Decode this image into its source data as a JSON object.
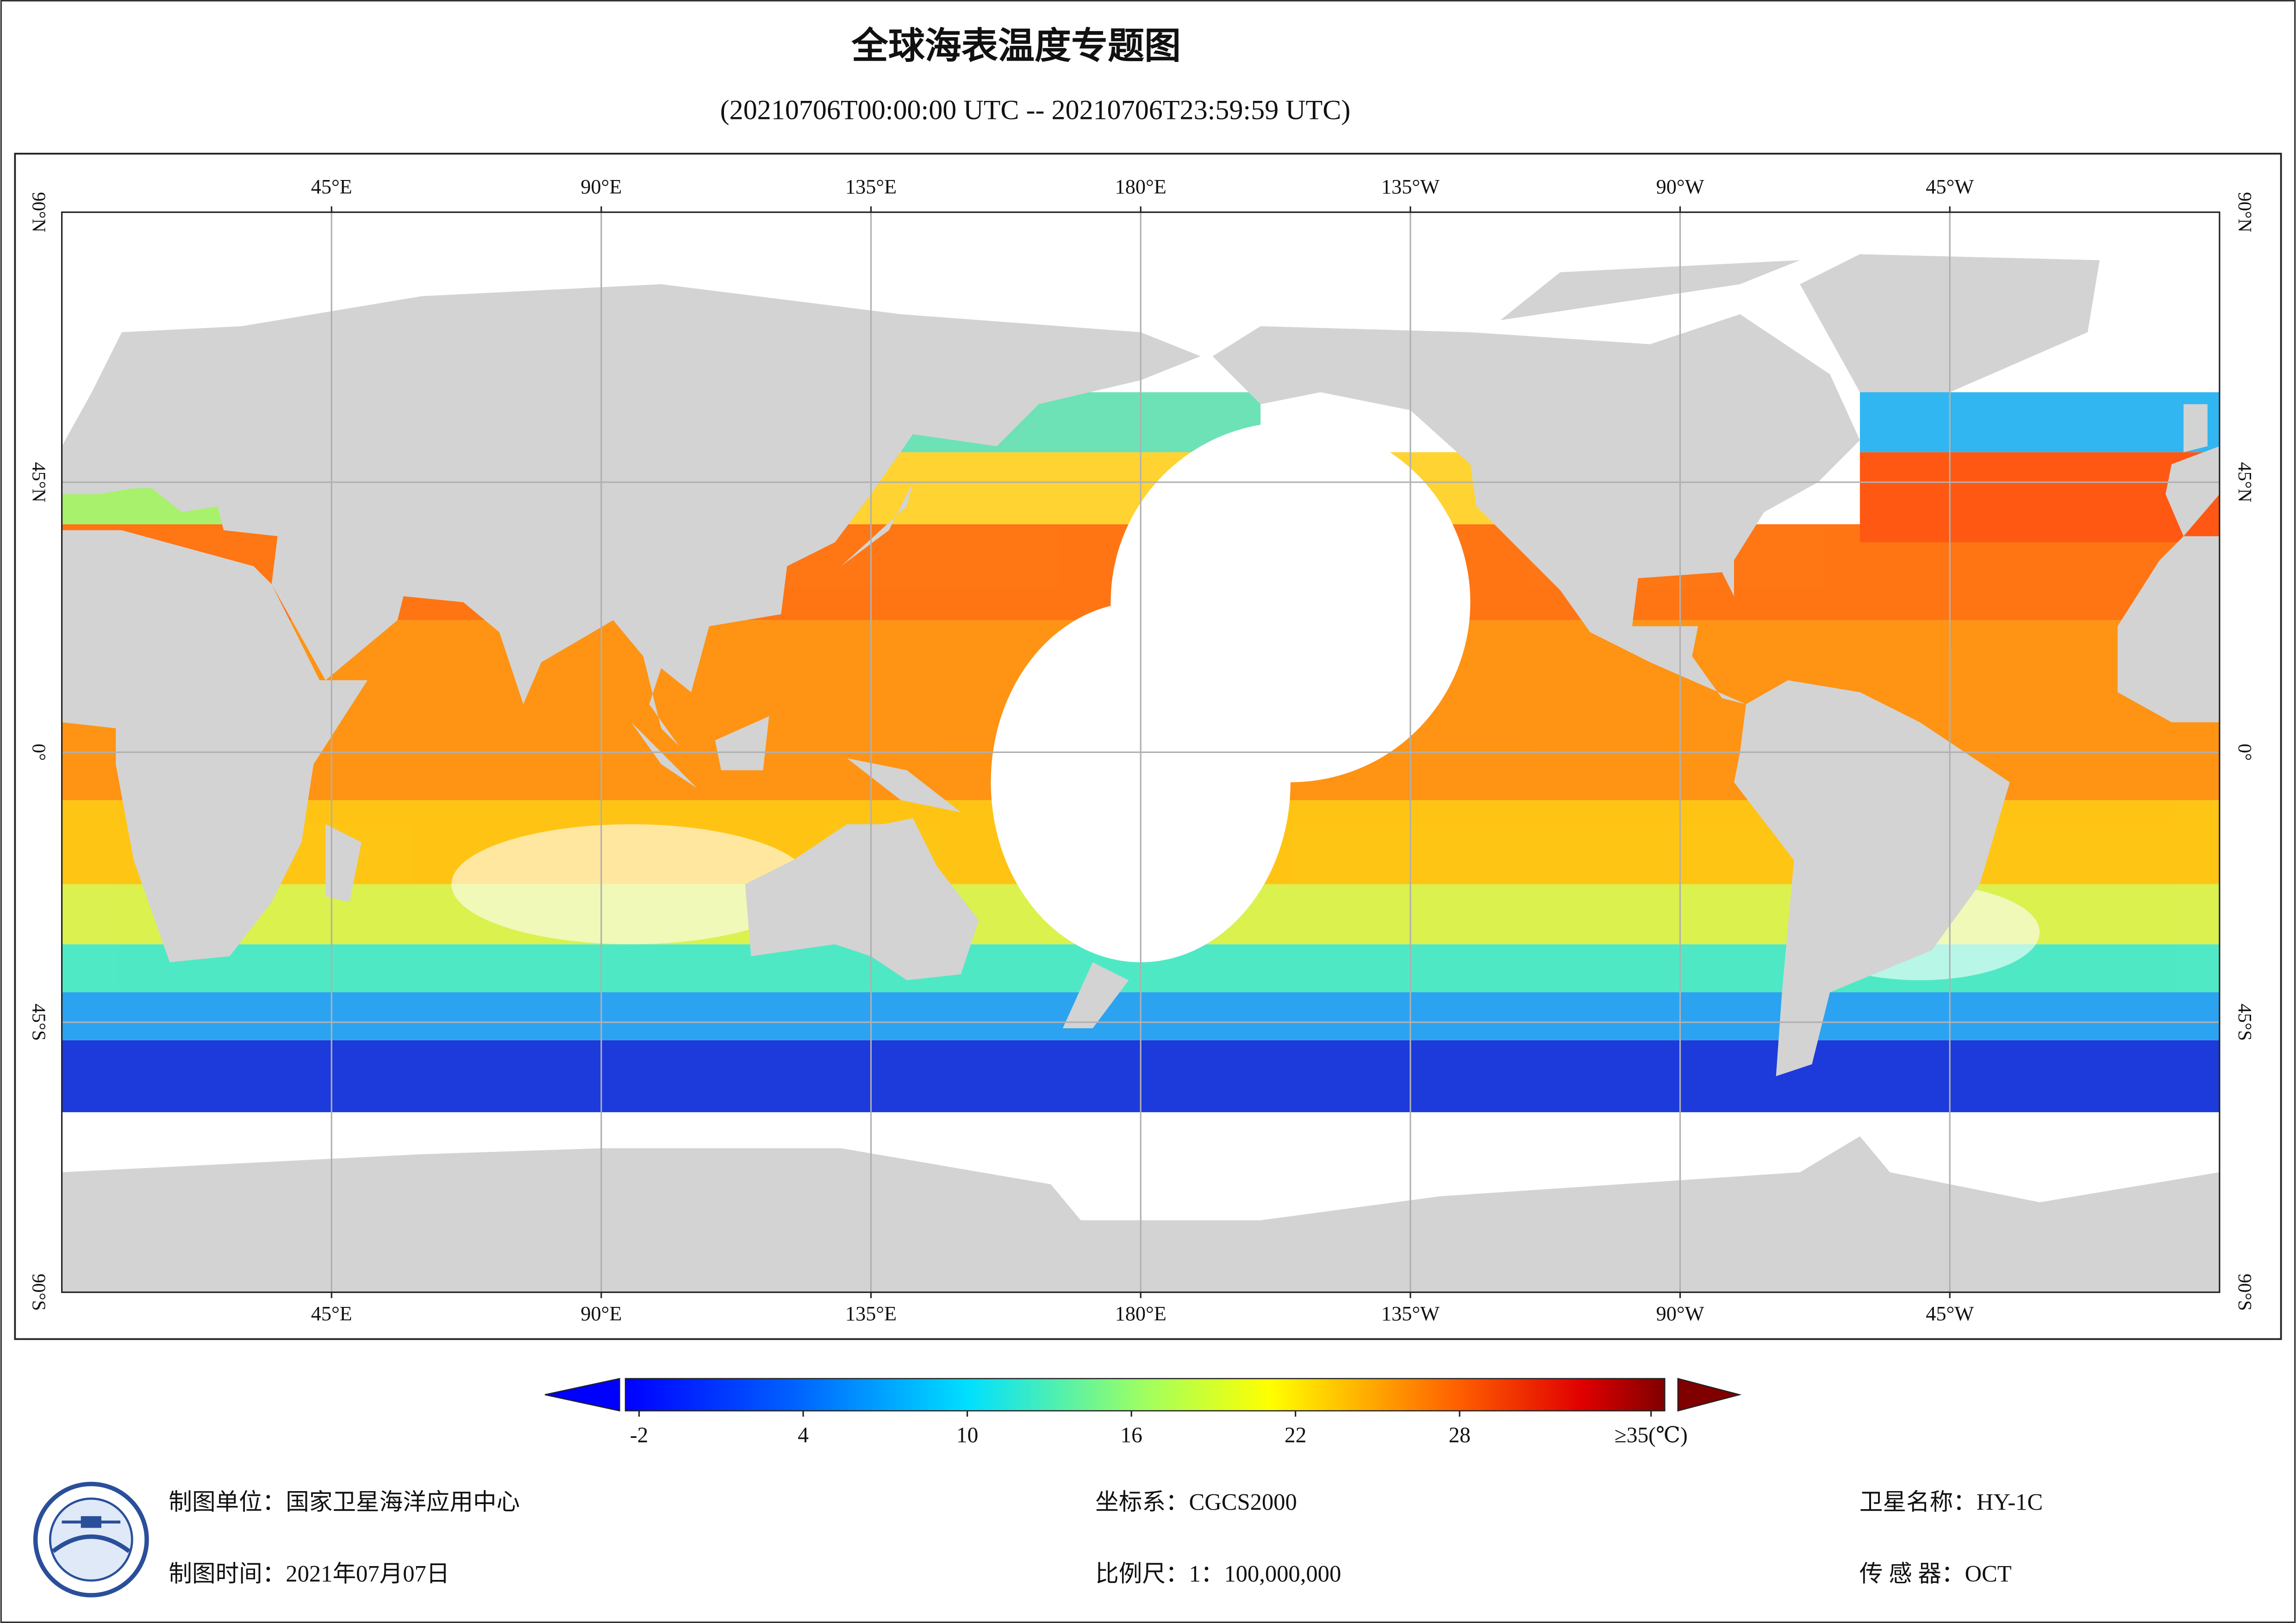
{
  "header": {
    "title": "全球海表温度专题图",
    "subtitle": "(20210706T00:00:00 UTC -- 20210706T23:59:59 UTC)"
  },
  "map": {
    "xlim": [
      0,
      360
    ],
    "ylim": [
      -90,
      90
    ],
    "lon_ticks": [
      {
        "value": 45,
        "label": "45°E"
      },
      {
        "value": 90,
        "label": "90°E"
      },
      {
        "value": 135,
        "label": "135°E"
      },
      {
        "value": 180,
        "label": "180°E"
      },
      {
        "value": -135,
        "label": "135°W"
      },
      {
        "value": -90,
        "label": "90°W"
      },
      {
        "value": -45,
        "label": "45°W"
      }
    ],
    "lat_ticks": [
      {
        "value": 90,
        "label": "90°N"
      },
      {
        "value": 45,
        "label": "45°N"
      },
      {
        "value": 0,
        "label": "0°"
      },
      {
        "value": -45,
        "label": "45°S"
      },
      {
        "value": -90,
        "label": "90°S"
      }
    ],
    "grid": true
  },
  "colorbar": {
    "lim": [
      -2.5,
      35.5
    ],
    "ticks": [
      -2,
      4,
      10,
      16,
      22,
      28,
      {
        "value": 35,
        "label": "≥35(℃)"
      }
    ]
  },
  "footer": {
    "unit": "制图单位：国家卫星海洋应用中心",
    "time": "制图时间：2021年07月07日",
    "crs": "坐标系：CGCS2000",
    "scale": "比例尺：1：100,000,000",
    "satellite": "卫星名称：HY-1C",
    "sensor": "传 感 器：OCT"
  }
}
